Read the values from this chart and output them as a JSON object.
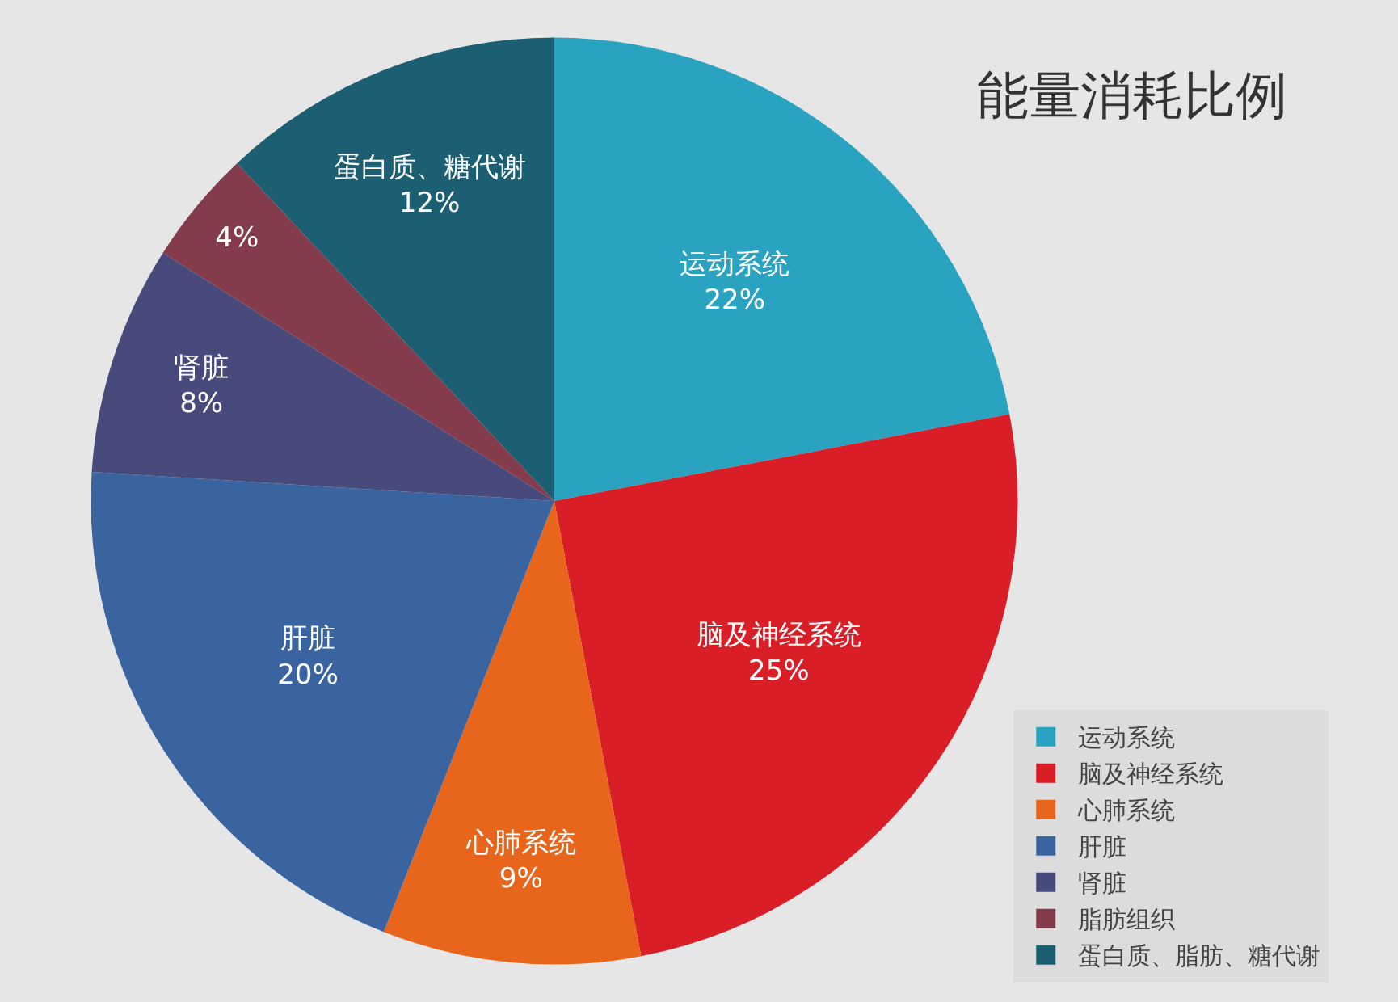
{
  "chart_data": {
    "type": "pie",
    "title": "能量消耗比例",
    "categories": [
      "运动系统",
      "脑及神经系统",
      "心肺系统",
      "肝脏",
      "肾脏",
      "脂肪组织",
      "蛋白质、脂肪、糖代谢"
    ],
    "values": [
      22,
      25,
      9,
      20,
      8,
      4,
      12
    ],
    "colors": [
      "#2aa3c1",
      "#da1e28",
      "#e8651c",
      "#3a64a0",
      "#494a7c",
      "#843c4c",
      "#1c5e72"
    ],
    "value_labels": [
      "运动系统\n22%",
      "脑及神经系统\n25%",
      "心肺系统\n9%",
      "肝脏\n20%",
      "肾脏\n8%",
      "4%",
      "蛋白质、糖代谢\n12%"
    ],
    "legend": "bottom right"
  }
}
